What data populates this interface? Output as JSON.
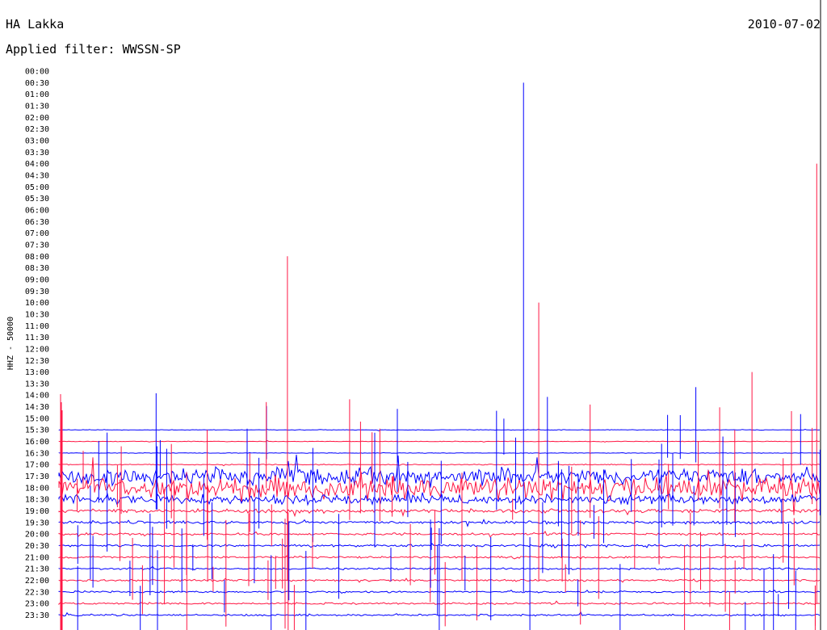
{
  "chart_data": {
    "type": "line",
    "title": "HA Lakka",
    "date": "2010-07-02",
    "filter_label": "Applied filter: WWSSN-SP",
    "ylabel": "HHZ - 50000",
    "colors": [
      "#ff1744",
      "#0000ff"
    ],
    "trace_labels": [
      "00:00",
      "00:30",
      "01:00",
      "01:30",
      "02:00",
      "02:30",
      "03:00",
      "03:30",
      "04:00",
      "04:30",
      "05:00",
      "05:30",
      "06:00",
      "06:30",
      "07:00",
      "07:30",
      "08:00",
      "08:30",
      "09:00",
      "09:30",
      "10:00",
      "10:30",
      "11:00",
      "11:30",
      "12:00",
      "12:30",
      "13:00",
      "13:30",
      "14:00",
      "14:30",
      "15:00",
      "15:30",
      "16:00",
      "16:30",
      "17:00",
      "17:30",
      "18:00",
      "18:30",
      "19:00",
      "19:30",
      "20:00",
      "20:30",
      "21:00",
      "21:30",
      "22:00",
      "22:30",
      "23:00",
      "23:30"
    ],
    "first_recorded_label": "15:30",
    "noise_level": {
      "15:30": 0.3,
      "16:00": 0.3,
      "16:30": 0.3,
      "17:00": 0.5,
      "17:30": 9,
      "18:00": 12,
      "18:30": 5,
      "19:00": 2,
      "19:30": 1.5,
      "20:00": 1.2,
      "20:30": 1.3,
      "21:00": 1,
      "21:30": 1,
      "22:00": 1,
      "22:30": 1,
      "23:00": 1,
      "23:30": 1
    },
    "tall_spikes": [
      {
        "row": "18:00",
        "x_frac": 0.3,
        "amplitude_rows": 20
      },
      {
        "row": "18:30",
        "x_frac": 0.61,
        "amplitude_rows": 36
      },
      {
        "row": "18:00",
        "x_frac": 0.63,
        "amplitude_rows": 16
      },
      {
        "row": "18:00",
        "x_frac": 0.91,
        "amplitude_rows": 10
      },
      {
        "row": "19:00",
        "x_frac": 0.995,
        "amplitude_rows": 30
      }
    ]
  }
}
